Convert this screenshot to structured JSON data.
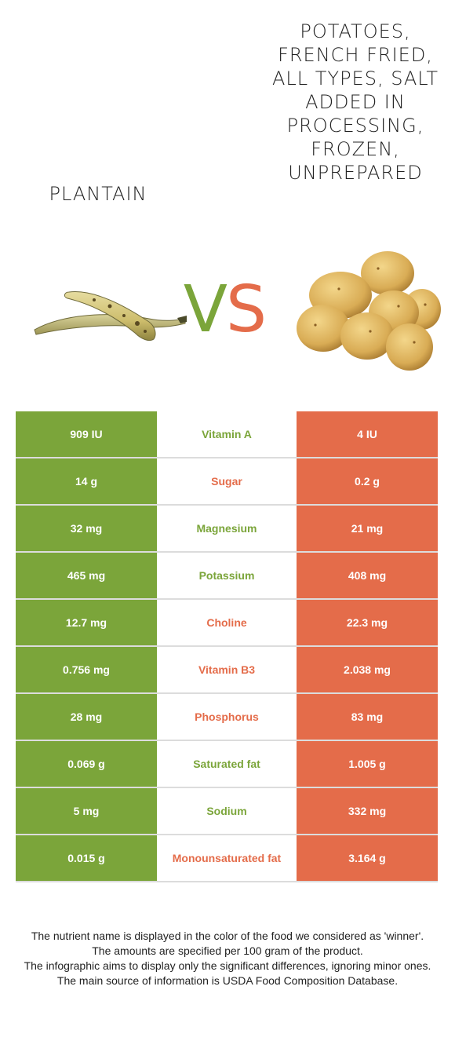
{
  "foods": {
    "left": {
      "name": "Plantain",
      "color": "#7ba53a",
      "image_icon": "plantain-image"
    },
    "right": {
      "name": "Potatoes, french fried, all types, salt added in processing, frozen, unprepared",
      "color": "#e46c4a",
      "image_icon": "potatoes-image"
    }
  },
  "vs": {
    "v": "V",
    "s": "S"
  },
  "rows": [
    {
      "nutrient": "Vitamin A",
      "left": "909 IU",
      "right": "4 IU",
      "winner": "left"
    },
    {
      "nutrient": "Sugar",
      "left": "14 g",
      "right": "0.2 g",
      "winner": "right"
    },
    {
      "nutrient": "Magnesium",
      "left": "32 mg",
      "right": "21 mg",
      "winner": "left"
    },
    {
      "nutrient": "Potassium",
      "left": "465 mg",
      "right": "408 mg",
      "winner": "left"
    },
    {
      "nutrient": "Choline",
      "left": "12.7 mg",
      "right": "22.3 mg",
      "winner": "right"
    },
    {
      "nutrient": "Vitamin B3",
      "left": "0.756 mg",
      "right": "2.038 mg",
      "winner": "right"
    },
    {
      "nutrient": "Phosphorus",
      "left": "28 mg",
      "right": "83 mg",
      "winner": "right"
    },
    {
      "nutrient": "Saturated fat",
      "left": "0.069 g",
      "right": "1.005 g",
      "winner": "left"
    },
    {
      "nutrient": "Sodium",
      "left": "5 mg",
      "right": "332 mg",
      "winner": "left"
    },
    {
      "nutrient": "Monounsaturated fat",
      "left": "0.015 g",
      "right": "3.164 g",
      "winner": "right"
    }
  ],
  "footnotes": [
    "The nutrient name is displayed in the color of the food we considered as 'winner'.",
    "The amounts are specified per 100 gram of the product.",
    "The infographic aims to display only the significant differences, ignoring minor ones.",
    "The main source of information is USDA Food Composition Database."
  ]
}
